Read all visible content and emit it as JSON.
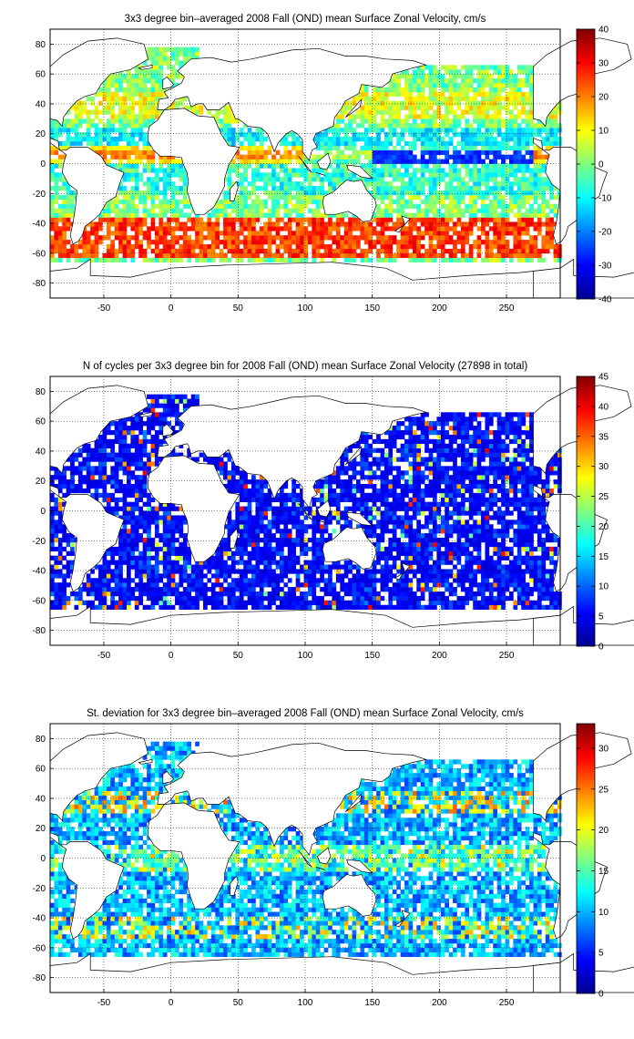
{
  "charts": [
    {
      "title": "3x3 degree bin–averaged 2008 Fall (OND) mean Surface Zonal Velocity, cm/s",
      "colorbar": {
        "min": -40,
        "max": 40,
        "ticks": [
          "40",
          "30",
          "20",
          "10",
          "0",
          "-10",
          "-20",
          "-30",
          "-40"
        ]
      }
    },
    {
      "title": "N of cycles per 3x3 degree bin for 2008 Fall (OND) mean Surface Zonal Velocity (27898 in total)",
      "colorbar": {
        "min": 0,
        "max": 45,
        "ticks": [
          "45",
          "40",
          "35",
          "30",
          "25",
          "20",
          "15",
          "10",
          "5",
          "0"
        ]
      }
    },
    {
      "title": "St. deviation for 3x3 degree bin–averaged 2008 Fall (OND) mean Surface Zonal Velocity, cm/s",
      "colorbar": {
        "min": 0,
        "max": 33,
        "ticks": [
          "30",
          "25",
          "20",
          "15",
          "10",
          "5",
          "0"
        ]
      }
    }
  ],
  "x_ticks": [
    "-50",
    "0",
    "50",
    "100",
    "150",
    "200",
    "250"
  ],
  "y_ticks": [
    "80",
    "60",
    "40",
    "20",
    "0",
    "-20",
    "-40",
    "-60",
    "-80"
  ],
  "chart_data": [
    {
      "type": "heatmap",
      "title": "3x3 degree bin–averaged 2008 Fall (OND) mean Surface Zonal Velocity, cm/s",
      "xlim": [
        -90,
        290
      ],
      "ylim": [
        -90,
        90
      ],
      "bin_size_deg": 3,
      "colormap": "jet",
      "clim": [
        -40,
        40
      ],
      "grid": true
    },
    {
      "type": "heatmap",
      "title": "N of cycles per 3x3 degree bin for 2008 Fall (OND) mean Surface Zonal Velocity (27898 in total)",
      "xlim": [
        -90,
        290
      ],
      "ylim": [
        -90,
        90
      ],
      "bin_size_deg": 3,
      "total": 27898,
      "colormap": "jet",
      "clim": [
        0,
        45
      ],
      "grid": true
    },
    {
      "type": "heatmap",
      "title": "St. deviation for 3x3 degree bin–averaged 2008 Fall (OND) mean Surface Zonal Velocity, cm/s",
      "xlim": [
        -90,
        290
      ],
      "ylim": [
        -90,
        90
      ],
      "bin_size_deg": 3,
      "colormap": "jet",
      "clim": [
        0,
        33
      ],
      "grid": true
    }
  ]
}
